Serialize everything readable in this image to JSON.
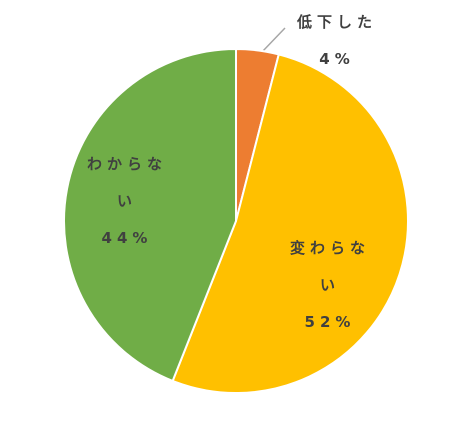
{
  "chart_data": {
    "type": "pie",
    "categories": [
      "低下した",
      "変わらない",
      "わからない"
    ],
    "values": [
      4,
      52,
      44
    ],
    "value_labels": [
      "4%",
      "52%",
      "44%"
    ],
    "colors": [
      "#ed7d31",
      "#ffc000",
      "#70ad47"
    ]
  }
}
